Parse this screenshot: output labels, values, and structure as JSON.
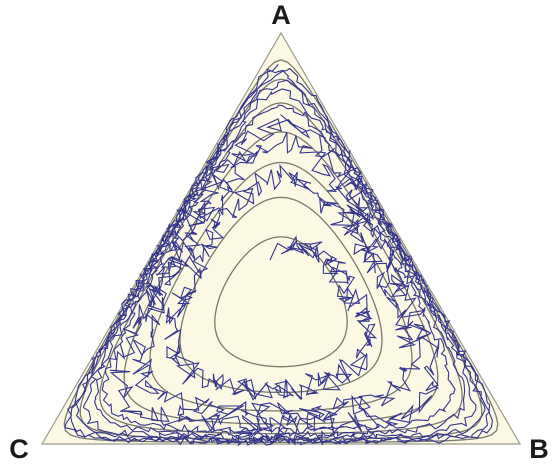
{
  "diagram": {
    "vertices": [
      {
        "id": "A",
        "label": "A"
      },
      {
        "id": "B",
        "label": "B"
      },
      {
        "id": "C",
        "label": "C"
      }
    ],
    "colors": {
      "simplex_fill": "#fbf8e4",
      "simplex_edge": "#9a9a86",
      "orbit": "#7a7a6e",
      "trajectory": "#35358f",
      "text": "#1a1a1a"
    },
    "orbit_count": 7,
    "trajectory_count": 1
  }
}
